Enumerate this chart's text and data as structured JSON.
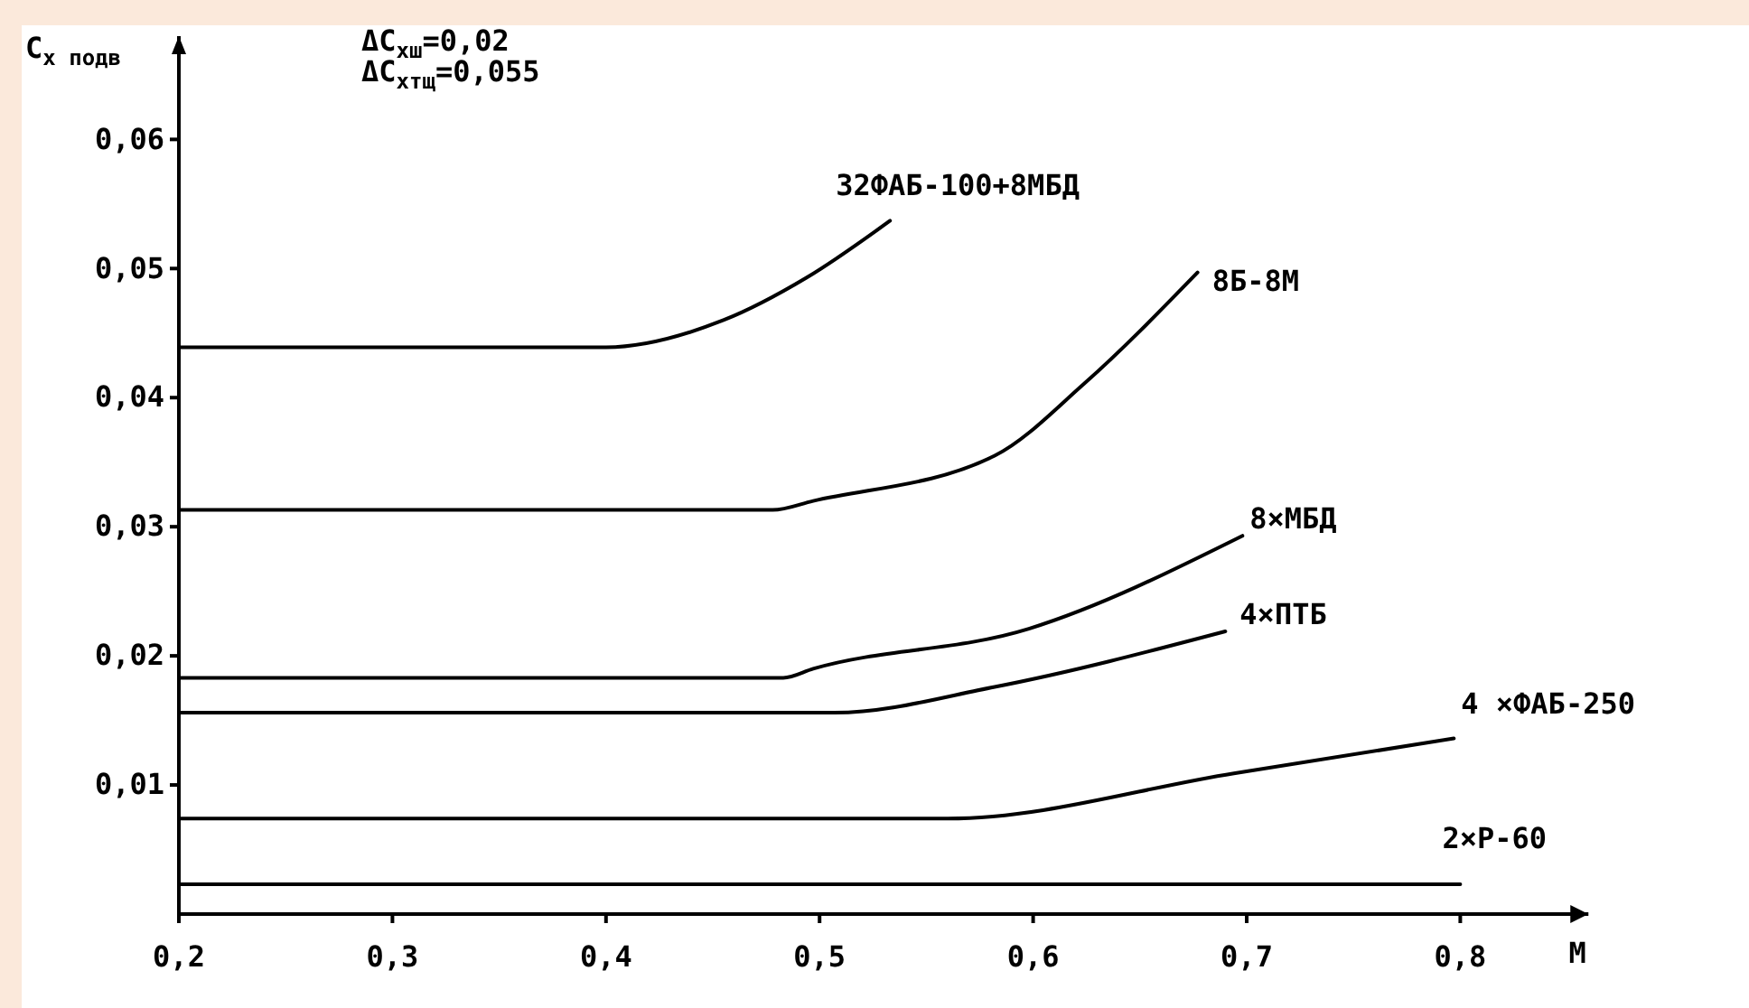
{
  "chart_data": {
    "type": "line",
    "xlabel": "M",
    "ylabel": "C$_{x подв}$",
    "annotations": [
      "ΔC$_{xш}$=0,02",
      "ΔC$_{xтщ}$=0,055"
    ],
    "xlim": [
      0.2,
      0.86
    ],
    "ylim": [
      0,
      0.068
    ],
    "xticks": [
      {
        "value": 0.2,
        "label": "0,2"
      },
      {
        "value": 0.3,
        "label": "0,3"
      },
      {
        "value": 0.4,
        "label": "0,4"
      },
      {
        "value": 0.5,
        "label": "0,5"
      },
      {
        "value": 0.6,
        "label": "0,6"
      },
      {
        "value": 0.7,
        "label": "0,7"
      },
      {
        "value": 0.8,
        "label": "0,8"
      }
    ],
    "yticks": [
      {
        "value": 0.01,
        "label": "0,01"
      },
      {
        "value": 0.02,
        "label": "0,02"
      },
      {
        "value": 0.03,
        "label": "0,03"
      },
      {
        "value": 0.04,
        "label": "0,04"
      },
      {
        "value": 0.05,
        "label": "0,05"
      },
      {
        "value": 0.06,
        "label": "0,06"
      }
    ],
    "grid": false,
    "legend": false,
    "marker": "none",
    "line_style": "solid",
    "series": [
      {
        "name": "32ФАБ-100+8МБД",
        "color": "#000000",
        "x": [
          0.2,
          0.4,
          0.455,
          0.494,
          0.533
        ],
        "values": [
          0.0439,
          0.0439,
          0.046,
          0.0493,
          0.0537
        ]
      },
      {
        "name": "8Б-8М",
        "color": "#000000",
        "x": [
          0.2,
          0.478,
          0.497,
          0.582,
          0.624,
          0.677
        ],
        "values": [
          0.0313,
          0.0313,
          0.032,
          0.0355,
          0.0411,
          0.0497
        ]
      },
      {
        "name": "8×МБД",
        "color": "#000000",
        "x": [
          0.2,
          0.483,
          0.497,
          0.598,
          0.698
        ],
        "values": [
          0.0183,
          0.0183,
          0.019,
          0.0221,
          0.0293
        ]
      },
      {
        "name": "4×ПТБ",
        "color": "#000000",
        "x": [
          0.2,
          0.507,
          0.582,
          0.69
        ],
        "values": [
          0.0156,
          0.0156,
          0.0176,
          0.0219
        ]
      },
      {
        "name": "4 ×ФАБ-250",
        "color": "#000000",
        "x": [
          0.2,
          0.56,
          0.694,
          0.797
        ],
        "values": [
          0.0074,
          0.0074,
          0.0109,
          0.0136
        ]
      },
      {
        "name": "2×Р-60",
        "color": "#000000",
        "x": [
          0.2,
          0.8
        ],
        "values": [
          0.0023,
          0.0023
        ]
      }
    ]
  }
}
